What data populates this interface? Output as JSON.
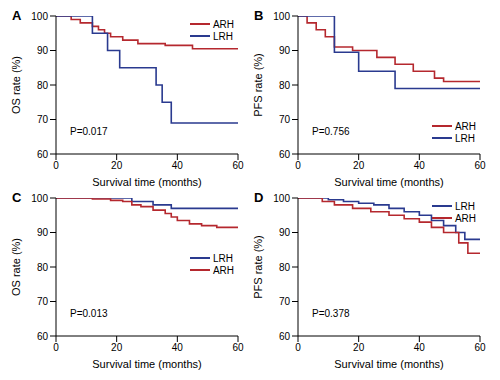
{
  "chart_data": [
    {
      "type": "line",
      "title": "A",
      "x_label": "Survival time (months)",
      "y_label": "OS rate (%)",
      "annotations": [
        "P=0.017"
      ],
      "legend": "upper right",
      "xlim": [
        0,
        60
      ],
      "xticks": [
        0,
        20,
        40,
        60
      ],
      "ylim": [
        60,
        100
      ],
      "yticks": [
        60,
        70,
        80,
        90,
        100
      ],
      "series": [
        {
          "name": "ARH",
          "color": "#b5282e",
          "x": [
            0,
            5,
            8,
            12,
            14,
            16,
            18,
            22,
            27,
            36,
            45,
            60
          ],
          "values": [
            100,
            99,
            98,
            97,
            96,
            95,
            94,
            93,
            92,
            91.5,
            90.5,
            90.5
          ]
        },
        {
          "name": "LRH",
          "color": "#2a3a8f",
          "x": [
            0,
            12,
            17,
            21,
            33,
            35,
            38,
            60
          ],
          "values": [
            100,
            95,
            90,
            85,
            80,
            75,
            69,
            69
          ]
        }
      ]
    },
    {
      "type": "line",
      "title": "B",
      "x_label": "Survival time (months)",
      "y_label": "PFS rate (%)",
      "annotations": [
        "P=0.756"
      ],
      "legend": "lower right",
      "xlim": [
        0,
        60
      ],
      "xticks": [
        0,
        20,
        40,
        60
      ],
      "ylim": [
        60,
        100
      ],
      "yticks": [
        60,
        70,
        80,
        90,
        100
      ],
      "series": [
        {
          "name": "ARH",
          "color": "#b5282e",
          "x": [
            0,
            3,
            6,
            9,
            12,
            18,
            26,
            32,
            38,
            45,
            48,
            60
          ],
          "values": [
            100,
            98,
            96,
            94,
            91,
            90,
            88,
            86,
            84,
            82,
            81,
            81
          ]
        },
        {
          "name": "LRH",
          "color": "#2a3a8f",
          "x": [
            0,
            12,
            20,
            32,
            60
          ],
          "values": [
            100,
            89.5,
            84,
            79,
            79
          ]
        }
      ]
    },
    {
      "type": "line",
      "title": "C",
      "x_label": "Survival time (months)",
      "y_label": "OS rate (%)",
      "annotations": [
        "P=0.013"
      ],
      "legend": "right",
      "xlim": [
        0,
        60
      ],
      "xticks": [
        0,
        20,
        40,
        60
      ],
      "ylim": [
        60,
        100
      ],
      "yticks": [
        60,
        70,
        80,
        90,
        100
      ],
      "series": [
        {
          "name": "LRH",
          "color": "#2a3a8f",
          "x": [
            0,
            25,
            32,
            38,
            60
          ],
          "values": [
            100,
            99,
            98,
            97,
            97
          ]
        },
        {
          "name": "ARH",
          "color": "#b5282e",
          "x": [
            0,
            12,
            18,
            22,
            25,
            28,
            32,
            36,
            38,
            40,
            44,
            48,
            53,
            60
          ],
          "values": [
            100,
            99.7,
            99.3,
            99,
            98,
            97.5,
            96.5,
            95.5,
            94.5,
            93.5,
            92.5,
            92,
            91.5,
            91.5
          ]
        }
      ]
    },
    {
      "type": "line",
      "title": "D",
      "x_label": "Survival time (months)",
      "y_label": "PFS rate (%)",
      "annotations": [
        "P=0.378"
      ],
      "legend": "upper right",
      "xlim": [
        0,
        60
      ],
      "xticks": [
        0,
        20,
        40,
        60
      ],
      "ylim": [
        60,
        100
      ],
      "yticks": [
        60,
        70,
        80,
        90,
        100
      ],
      "series": [
        {
          "name": "LRH",
          "color": "#2a3a8f",
          "x": [
            0,
            10,
            15,
            20,
            25,
            30,
            35,
            40,
            44,
            48,
            52,
            55,
            60
          ],
          "values": [
            100,
            99.5,
            99,
            98.5,
            98,
            97,
            96,
            95,
            93.5,
            92,
            90,
            88,
            88
          ]
        },
        {
          "name": "ARH",
          "color": "#b5282e",
          "x": [
            0,
            8,
            12,
            18,
            24,
            30,
            35,
            40,
            44,
            48,
            53,
            56,
            60
          ],
          "values": [
            100,
            99,
            98,
            97,
            96,
            95,
            94,
            93,
            91.5,
            90,
            87,
            84,
            84
          ]
        }
      ]
    }
  ]
}
